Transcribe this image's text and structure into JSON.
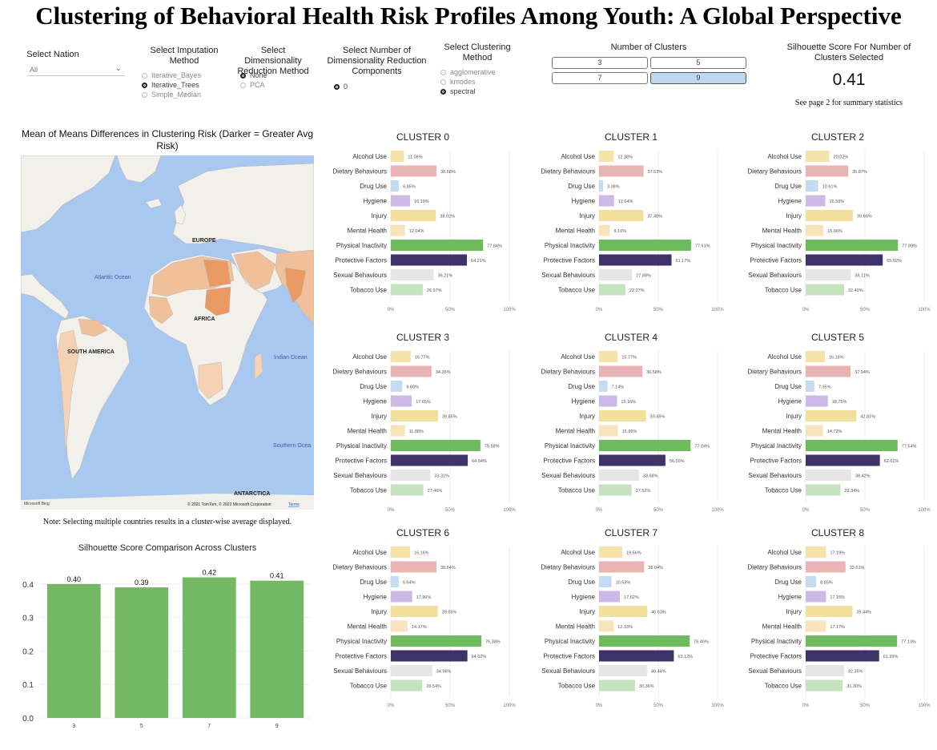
{
  "title": "Clustering of Behavioral Health Risk Profiles Among Youth: A Global Perspective",
  "controls": {
    "nation": {
      "label": "Select Nation",
      "value": "All"
    },
    "imputation": {
      "label": "Select Imputation Method",
      "options": [
        "Iterative_Bayes",
        "Iterative_Trees",
        "Simple_Median"
      ],
      "selected": "Iterative_Trees"
    },
    "dim_reduction": {
      "label": "Select Dimensionality Reduction Method",
      "options": [
        "None",
        "PCA"
      ],
      "selected": "None"
    },
    "components": {
      "label": "Select Number of Dimensionality Reduction Components",
      "options": [
        "0"
      ],
      "selected": "0"
    },
    "clustering": {
      "label": "Select Clustering Method",
      "options": [
        "agglomerative",
        "kmodes",
        "spectral"
      ],
      "selected": "spectral"
    },
    "num_clusters": {
      "label": "Number of Clusters",
      "options": [
        "3",
        "5",
        "7",
        "9"
      ],
      "selected": "9"
    },
    "silhouette_selected": {
      "label": "Silhouette Score For Number of Clusters Selected",
      "value": "0.41",
      "note": "See page 2 for summary statistics"
    }
  },
  "map": {
    "title": "Mean of Means Differences in Clustering Risk (Darker = Greater Avg Risk)",
    "labels": [
      "EUROPE",
      "AFRICA",
      "SOUTH AMERICA",
      "ANTARCTICA",
      "Atlantic Ocean",
      "Indian Ocean",
      "Southern Ocea"
    ],
    "attribution": "© 2021 TomTom, © 2022 Microsoft Corporation",
    "terms": "Terms",
    "logo": "Microsoft Bing",
    "note": "Note: Selecting multiple countries results in a cluster-wise average displayed.",
    "colors": {
      "ocean": "#a8c8f0",
      "land": "#f2f0ea",
      "risk_low": "#f6d2b4",
      "risk_high": "#e89a62"
    }
  },
  "chart_data": [
    {
      "type": "bar",
      "orientation": "horizontal",
      "title": "CLUSTER 0",
      "categories": [
        "Alcohol Use",
        "Dietary Behaviours",
        "Drug Use",
        "Hygiene",
        "Injury",
        "Mental Health",
        "Physical Inactivity",
        "Protective Factors",
        "Sexual Behaviours",
        "Tobacco Use"
      ],
      "values": [
        11.08,
        38.58,
        6.85,
        16.19,
        38.02,
        12.04,
        77.84,
        64.21,
        36.21,
        26.97
      ],
      "labels": [
        "11.08%",
        "38.58%",
        "6.85%",
        "16.19%",
        "38.02%",
        "12.04%",
        "77.84%",
        "64.21%",
        "36.21%",
        "26.97%"
      ],
      "xlim": [
        0,
        100
      ],
      "xticks": [
        "0%",
        "50%",
        "100%"
      ],
      "colors": [
        "#f6e3a9",
        "#e8b4b4",
        "#c5dbf2",
        "#cdb9e8",
        "#f3df9c",
        "#f7e4bd",
        "#6dbb5c",
        "#3f3268",
        "#e6e6e6",
        "#c6e3bf"
      ]
    },
    {
      "type": "bar",
      "orientation": "horizontal",
      "title": "CLUSTER 1",
      "categories": [
        "Alcohol Use",
        "Dietary Behaviours",
        "Drug Use",
        "Hygiene",
        "Injury",
        "Mental Health",
        "Physical Inactivity",
        "Protective Factors",
        "Sexual Behaviours",
        "Tobacco Use"
      ],
      "values": [
        12.38,
        37.53,
        3.38,
        12.64,
        37.4,
        9.16,
        77.61,
        61.17,
        27.88,
        22.27
      ],
      "labels": [
        "12.38%",
        "37.53%",
        "3.38%",
        "12.64%",
        "37.40%",
        "9.16%",
        "77.61%",
        "61.17%",
        "27.88%",
        "22.27%"
      ],
      "xlim": [
        0,
        100
      ],
      "xticks": [
        "0%",
        "50%",
        "100%"
      ],
      "colors": [
        "#f6e3a9",
        "#e8b4b4",
        "#c5dbf2",
        "#cdb9e8",
        "#f3df9c",
        "#f7e4bd",
        "#6dbb5c",
        "#3f3268",
        "#e6e6e6",
        "#c6e3bf"
      ]
    },
    {
      "type": "bar",
      "orientation": "horizontal",
      "title": "CLUSTER 2",
      "categories": [
        "Alcohol Use",
        "Dietary Behaviours",
        "Drug Use",
        "Hygiene",
        "Injury",
        "Mental Health",
        "Physical Inactivity",
        "Protective Factors",
        "Sexual Behaviours",
        "Tobacco Use"
      ],
      "values": [
        20.02,
        35.87,
        10.61,
        16.59,
        39.86,
        15.06,
        77.89,
        65.02,
        38.11,
        32.4
      ],
      "labels": [
        "20.02%",
        "35.87%",
        "10.61%",
        "16.59%",
        "39.86%",
        "15.06%",
        "77.89%",
        "65.02%",
        "38.11%",
        "32.40%"
      ],
      "xlim": [
        0,
        100
      ],
      "xticks": [
        "0%",
        "50%",
        "100%"
      ],
      "colors": [
        "#f6e3a9",
        "#e8b4b4",
        "#c5dbf2",
        "#cdb9e8",
        "#f3df9c",
        "#f7e4bd",
        "#6dbb5c",
        "#3f3268",
        "#e6e6e6",
        "#c6e3bf"
      ]
    },
    {
      "type": "bar",
      "orientation": "horizontal",
      "title": "CLUSTER 3",
      "categories": [
        "Alcohol Use",
        "Dietary Behaviours",
        "Drug Use",
        "Hygiene",
        "Injury",
        "Mental Health",
        "Physical Inactivity",
        "Protective Factors",
        "Sexual Behaviours",
        "Tobacco Use"
      ],
      "values": [
        16.77,
        34.35,
        9.68,
        17.65,
        39.85,
        11.88,
        75.58,
        64.94,
        33.31,
        27.46
      ],
      "labels": [
        "16.77%",
        "34.35%",
        "9.68%",
        "17.65%",
        "39.85%",
        "11.88%",
        "75.58%",
        "64.94%",
        "33.31%",
        "27.46%"
      ],
      "xlim": [
        0,
        100
      ],
      "xticks": [
        "0%",
        "50%",
        "100%"
      ],
      "colors": [
        "#f6e3a9",
        "#e8b4b4",
        "#c5dbf2",
        "#cdb9e8",
        "#f3df9c",
        "#f7e4bd",
        "#6dbb5c",
        "#3f3268",
        "#e6e6e6",
        "#c6e3bf"
      ]
    },
    {
      "type": "bar",
      "orientation": "horizontal",
      "title": "CLUSTER 4",
      "categories": [
        "Alcohol Use",
        "Dietary Behaviours",
        "Drug Use",
        "Hygiene",
        "Injury",
        "Mental Health",
        "Physical Inactivity",
        "Protective Factors",
        "Sexual Behaviours",
        "Tobacco Use"
      ],
      "values": [
        15.77,
        36.58,
        7.14,
        15.16,
        39.65,
        15.96,
        77.24,
        56.0,
        33.68,
        27.52
      ],
      "labels": [
        "15.77%",
        "36.58%",
        "7.14%",
        "15.16%",
        "39.65%",
        "15.96%",
        "77.24%",
        "56.00%",
        "33.68%",
        "27.52%"
      ],
      "xlim": [
        0,
        100
      ],
      "xticks": [
        "0%",
        "50%",
        "100%"
      ],
      "colors": [
        "#f6e3a9",
        "#e8b4b4",
        "#c5dbf2",
        "#cdb9e8",
        "#f3df9c",
        "#f7e4bd",
        "#6dbb5c",
        "#3f3268",
        "#e6e6e6",
        "#c6e3bf"
      ]
    },
    {
      "type": "bar",
      "orientation": "horizontal",
      "title": "CLUSTER 5",
      "categories": [
        "Alcohol Use",
        "Dietary Behaviours",
        "Drug Use",
        "Hygiene",
        "Injury",
        "Mental Health",
        "Physical Inactivity",
        "Protective Factors",
        "Sexual Behaviours",
        "Tobacco Use"
      ],
      "values": [
        16.18,
        37.94,
        7.35,
        18.75,
        42.81,
        14.72,
        77.54,
        62.61,
        38.42,
        29.34
      ],
      "labels": [
        "16.18%",
        "37.94%",
        "7.35%",
        "18.75%",
        "42.81%",
        "14.72%",
        "77.54%",
        "62.61%",
        "38.42%",
        "29.34%"
      ],
      "xlim": [
        0,
        100
      ],
      "xticks": [
        "0%",
        "50%",
        "100%"
      ],
      "colors": [
        "#f6e3a9",
        "#e8b4b4",
        "#c5dbf2",
        "#cdb9e8",
        "#f3df9c",
        "#f7e4bd",
        "#6dbb5c",
        "#3f3268",
        "#e6e6e6",
        "#c6e3bf"
      ]
    },
    {
      "type": "bar",
      "orientation": "horizontal",
      "title": "CLUSTER 6",
      "categories": [
        "Alcohol Use",
        "Dietary Behaviours",
        "Drug Use",
        "Hygiene",
        "Injury",
        "Mental Health",
        "Physical Inactivity",
        "Protective Factors",
        "Sexual Behaviours",
        "Tobacco Use"
      ],
      "values": [
        16.16,
        38.54,
        6.64,
        17.96,
        39.65,
        14.17,
        76.38,
        64.62,
        34.96,
        26.54
      ],
      "labels": [
        "16.16%",
        "38.54%",
        "6.64%",
        "17.96%",
        "39.65%",
        "14.17%",
        "76.38%",
        "64.62%",
        "34.96%",
        "26.54%"
      ],
      "xlim": [
        0,
        100
      ],
      "xticks": [
        "0%",
        "50%",
        "100%"
      ],
      "colors": [
        "#f6e3a9",
        "#e8b4b4",
        "#c5dbf2",
        "#cdb9e8",
        "#f3df9c",
        "#f7e4bd",
        "#6dbb5c",
        "#3f3268",
        "#e6e6e6",
        "#c6e3bf"
      ]
    },
    {
      "type": "bar",
      "orientation": "horizontal",
      "title": "CLUSTER 7",
      "categories": [
        "Alcohol Use",
        "Dietary Behaviours",
        "Drug Use",
        "Hygiene",
        "Injury",
        "Mental Health",
        "Physical Inactivity",
        "Protective Factors",
        "Sexual Behaviours",
        "Tobacco Use"
      ],
      "values": [
        19.56,
        38.04,
        10.53,
        17.62,
        40.63,
        12.33,
        76.46,
        63.12,
        40.44,
        30.36
      ],
      "labels": [
        "19.56%",
        "38.04%",
        "10.53%",
        "17.62%",
        "40.63%",
        "12.33%",
        "76.46%",
        "63.12%",
        "40.44%",
        "30.36%"
      ],
      "xlim": [
        0,
        100
      ],
      "xticks": [
        "0%",
        "50%",
        "100%"
      ],
      "colors": [
        "#f6e3a9",
        "#e8b4b4",
        "#c5dbf2",
        "#cdb9e8",
        "#f3df9c",
        "#f7e4bd",
        "#6dbb5c",
        "#3f3268",
        "#e6e6e6",
        "#c6e3bf"
      ]
    },
    {
      "type": "bar",
      "orientation": "horizontal",
      "title": "CLUSTER 8",
      "categories": [
        "Alcohol Use",
        "Dietary Behaviours",
        "Drug Use",
        "Hygiene",
        "Injury",
        "Mental Health",
        "Physical Inactivity",
        "Protective Factors",
        "Sexual Behaviours",
        "Tobacco Use"
      ],
      "values": [
        17.19,
        33.61,
        8.85,
        17.15,
        39.44,
        17.17,
        77.13,
        61.99,
        32.35,
        31.3
      ],
      "labels": [
        "17.19%",
        "33.61%",
        "8.85%",
        "17.15%",
        "39.44%",
        "17.17%",
        "77.13%",
        "61.99%",
        "32.35%",
        "31.30%"
      ],
      "xlim": [
        0,
        100
      ],
      "xticks": [
        "0%",
        "50%",
        "100%"
      ],
      "colors": [
        "#f6e3a9",
        "#e8b4b4",
        "#c5dbf2",
        "#cdb9e8",
        "#f3df9c",
        "#f7e4bd",
        "#6dbb5c",
        "#3f3268",
        "#e6e6e6",
        "#c6e3bf"
      ]
    },
    {
      "type": "bar",
      "title": "Silhouette Score Comparison Across Clusters",
      "categories": [
        "3",
        "5",
        "7",
        "9"
      ],
      "values": [
        0.4,
        0.39,
        0.42,
        0.41
      ],
      "labels": [
        "0.40",
        "0.39",
        "0.42",
        "0.41"
      ],
      "ylim": [
        0,
        0.45
      ],
      "yticks": [
        "0.0",
        "0.1",
        "0.2",
        "0.3",
        "0.4"
      ],
      "grid": true,
      "color": "#74b863"
    }
  ]
}
